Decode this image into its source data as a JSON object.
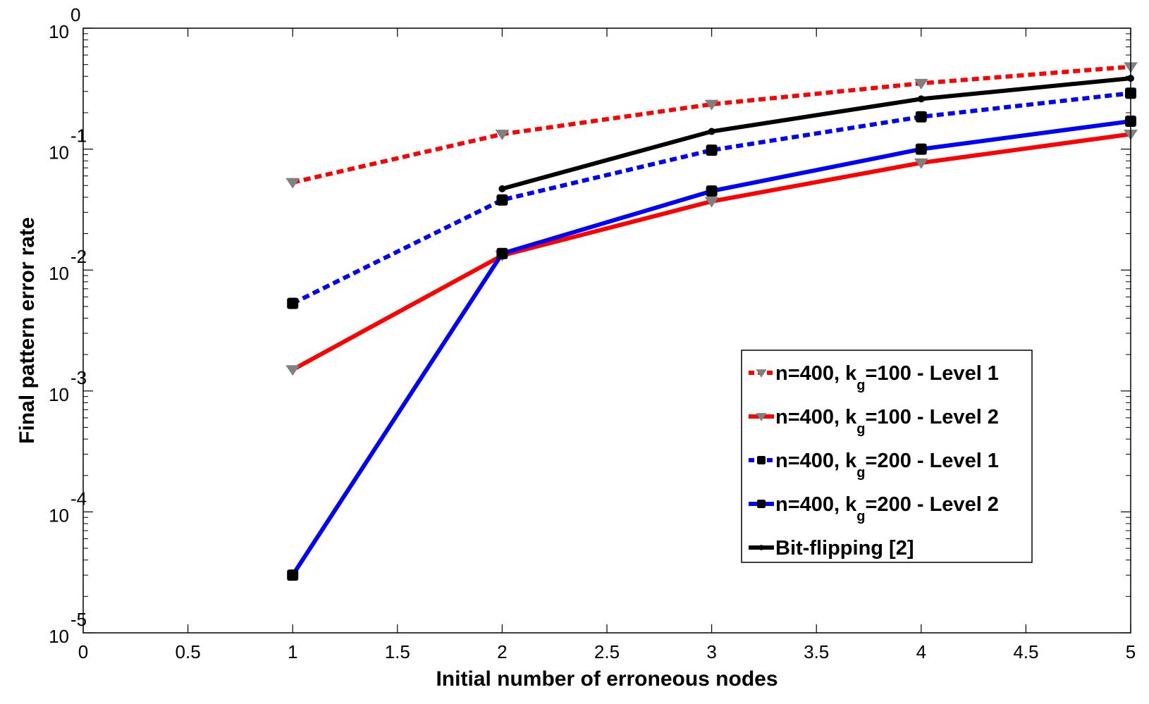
{
  "chart_data": {
    "type": "line",
    "title": "",
    "xlabel": "Initial number of erroneous nodes",
    "ylabel": "Final pattern error rate",
    "xlim": [
      0,
      5
    ],
    "ylim": [
      1e-05,
      1
    ],
    "yscale": "log",
    "xticks": [
      "0",
      "0.5",
      "1",
      "1.5",
      "2",
      "2.5",
      "3",
      "3.5",
      "4",
      "4.5",
      "5"
    ],
    "yticks": [
      {
        "base": "10",
        "exp": "0",
        "value": 1
      },
      {
        "base": "10",
        "exp": "-1",
        "value": 0.1
      },
      {
        "base": "10",
        "exp": "-2",
        "value": 0.01
      },
      {
        "base": "10",
        "exp": "-3",
        "value": 0.001
      },
      {
        "base": "10",
        "exp": "-4",
        "value": 0.0001
      },
      {
        "base": "10",
        "exp": "-5",
        "value": 1e-05
      }
    ],
    "legend_position": "lower-right",
    "series": [
      {
        "name": "n=400, k_g=100 - Level 1",
        "legend_parts": [
          "n=400, k",
          "g",
          "=100 - Level 1"
        ],
        "color": "#ff0000",
        "marker_color": "#808080",
        "style": "dashed",
        "marker": "triangle-down",
        "x": [
          1,
          2,
          3,
          4,
          5
        ],
        "y": [
          0.053,
          0.133,
          0.235,
          0.35,
          0.48
        ]
      },
      {
        "name": "n=400, k_g=100 - Level 2",
        "legend_parts": [
          "n=400, k",
          "g",
          "=100 - Level 2"
        ],
        "color": "#ff0000",
        "marker_color": "#808080",
        "style": "solid",
        "marker": "triangle-down",
        "x": [
          1,
          2,
          3,
          4,
          5
        ],
        "y": [
          0.0015,
          0.0132,
          0.037,
          0.077,
          0.133
        ]
      },
      {
        "name": "n=400, k_g=200 - Level 1",
        "legend_parts": [
          "n=400, k",
          "g",
          "=200 - Level 1"
        ],
        "color": "#0000ff",
        "marker_color": "#000000",
        "style": "dashed",
        "marker": "square",
        "x": [
          1,
          2,
          3,
          4,
          5
        ],
        "y": [
          0.0053,
          0.038,
          0.098,
          0.185,
          0.29
        ]
      },
      {
        "name": "n=400, k_g=200 - Level 2",
        "legend_parts": [
          "n=400, k",
          "g",
          "=200 - Level 2"
        ],
        "color": "#0000ff",
        "marker_color": "#000000",
        "style": "solid",
        "marker": "square",
        "x": [
          1,
          2,
          3,
          4,
          5
        ],
        "y": [
          3e-05,
          0.0137,
          0.045,
          0.1,
          0.17
        ]
      },
      {
        "name": "Bit-flipping [2]",
        "legend_parts": [
          "Bit-flipping [2]",
          "",
          ""
        ],
        "color": "#000000",
        "marker_color": "#000000",
        "style": "solid",
        "marker": "dot",
        "x": [
          2,
          3,
          4,
          5
        ],
        "y": [
          0.047,
          0.14,
          0.26,
          0.385
        ]
      }
    ]
  }
}
